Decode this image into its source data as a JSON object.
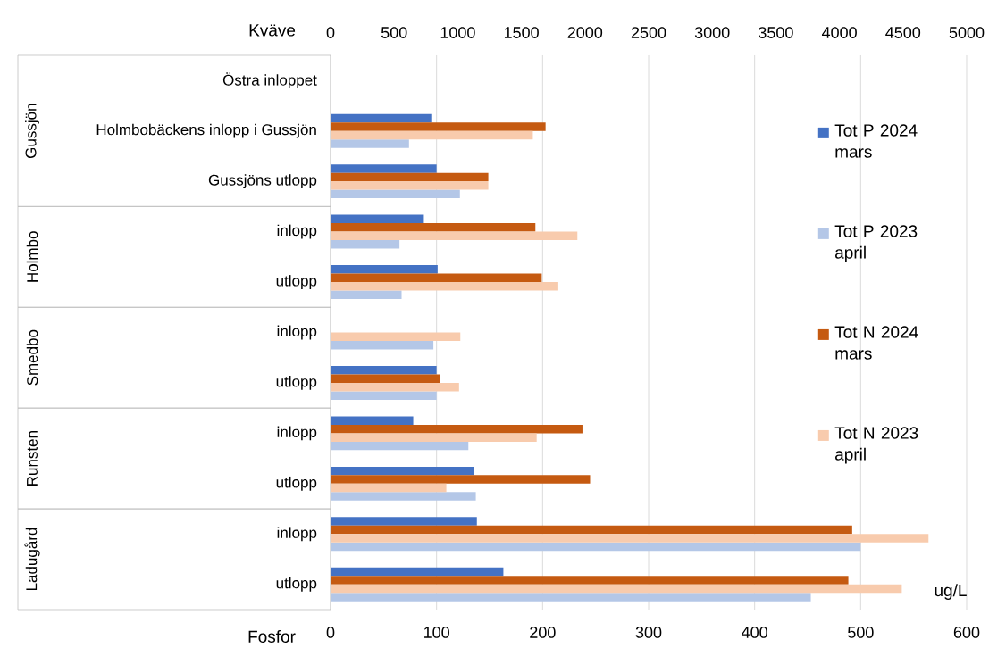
{
  "chart_data": {
    "type": "bar",
    "orientation": "horizontal",
    "xlabel": "Fosfor",
    "x2label": "Kväve",
    "categories": [
      "Östra inloppet",
      "Holmbobäckens inlopp i Gussjön",
      "Gussjöns utlopp",
      "inlopp",
      "utlopp",
      "inlopp",
      "utlopp",
      "inlopp",
      "utlopp",
      "inlopp",
      "utlopp"
    ],
    "series": [
      {
        "name": "Tot P 2024 mars",
        "color": "#4472c4",
        "values": [
          null,
          95,
          100,
          88,
          101,
          null,
          100,
          78,
          135,
          138,
          163
        ]
      },
      {
        "name": "Tot N 2024 mars",
        "color": "#c55a11",
        "axis": "x2",
        "values": [
          null,
          1690,
          1240,
          1610,
          1660,
          null,
          860,
          1980,
          2040,
          4100,
          4070
        ]
      },
      {
        "name": "Tot N 2023 april",
        "color": "#f8cbad",
        "axis": "x2",
        "values": [
          null,
          1590,
          1240,
          1940,
          1790,
          1020,
          1010,
          1620,
          910,
          4700,
          4490
        ]
      },
      {
        "name": "Tot P 2023 april",
        "color": "#b4c7e7",
        "values": [
          null,
          74,
          122,
          65,
          67,
          97,
          100,
          130,
          137,
          500,
          453
        ]
      }
    ],
    "xlim": [
      0,
      600
    ],
    "xticks": [
      0,
      100,
      200,
      300,
      400,
      500,
      600
    ],
    "x2lim": [
      0,
      5000
    ],
    "x2ticks": [
      0,
      500,
      1000,
      1500,
      2000,
      2500,
      3000,
      3500,
      4000,
      4500,
      5000
    ],
    "annotations": [
      "Gussjön",
      "Holmbo",
      "Smedbo",
      "Runsten",
      "Ladugård",
      "ug/L"
    ],
    "grid": "x",
    "legend": "right"
  }
}
